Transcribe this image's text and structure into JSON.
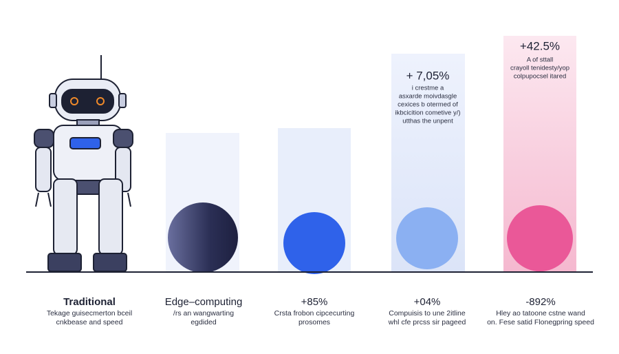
{
  "labels": [
    {
      "title": "Traditional",
      "lines": [
        "Tekage guisecmerton bceil",
        "cnkbease and speed"
      ]
    },
    {
      "title": "Edge–computing",
      "lines": [
        "/rs an wangwarting",
        "egdided"
      ]
    },
    {
      "title": "+85%",
      "lines": [
        "Crsta frobon cipcecurting",
        "prosomes"
      ]
    },
    {
      "title": "+04%",
      "lines": [
        "Compuisis to une 2itline",
        "whl cfe prcss sir pageed"
      ]
    },
    {
      "title": "-892%",
      "lines": [
        "Hley ao tatoone cstne wand",
        "on. Fese satid Flonegpring speed"
      ]
    }
  ],
  "callouts": [
    {
      "headline": "+ 7,05%",
      "lines": [
        "i crestme a",
        "asxarde moivdasgle",
        "cexices b otermed of",
        "ikbcicition cometive y/)",
        "utthas the unpent"
      ]
    },
    {
      "headline": "+42.5%",
      "lines": [
        "A of sttall",
        "crayoll tenidesty/yop",
        "colpupocsel itared"
      ]
    }
  ]
}
